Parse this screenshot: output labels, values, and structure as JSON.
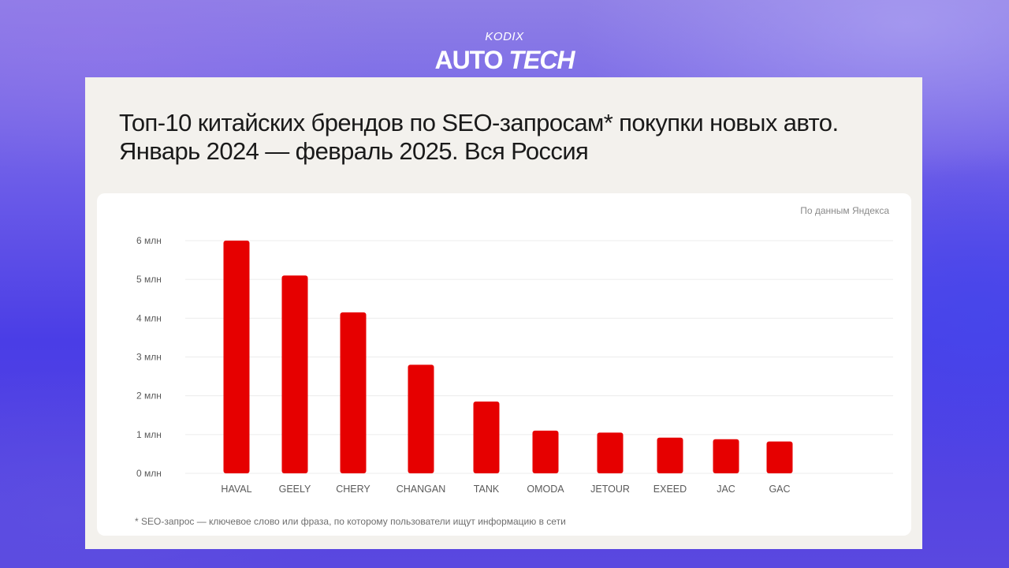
{
  "brand": {
    "top": "KODIX",
    "main_a": "AUTO",
    "main_b": "TECH"
  },
  "title": "Топ-10 китайских брендов по SEO-запросам* покупки новых авто. Январь 2024 — февраль 2025. Вся Россия",
  "source": "По данным Яндекса",
  "footnote": "* SEO-запрос — ключевое слово или фраза, по которому пользователи ищут информацию в сети",
  "colors": {
    "bar": "#e60000",
    "grid": "#ececec",
    "tick": "#5a5a5a"
  },
  "chart_data": {
    "type": "bar",
    "categories": [
      "HAVAL",
      "GEELY",
      "CHERY",
      "CHANGAN",
      "TANK",
      "OMODA",
      "JETOUR",
      "EXEED",
      "JAC",
      "GAC"
    ],
    "values": [
      6.0,
      5.1,
      4.15,
      2.8,
      1.85,
      1.1,
      1.05,
      0.92,
      0.88,
      0.82
    ],
    "ylim": [
      0,
      6
    ],
    "yticks": [
      0,
      1,
      2,
      3,
      4,
      5,
      6
    ],
    "ytick_labels": [
      "0 млн",
      "1 млн",
      "2 млн",
      "3 млн",
      "4 млн",
      "5 млн",
      "6 млн"
    ],
    "grid": true
  }
}
